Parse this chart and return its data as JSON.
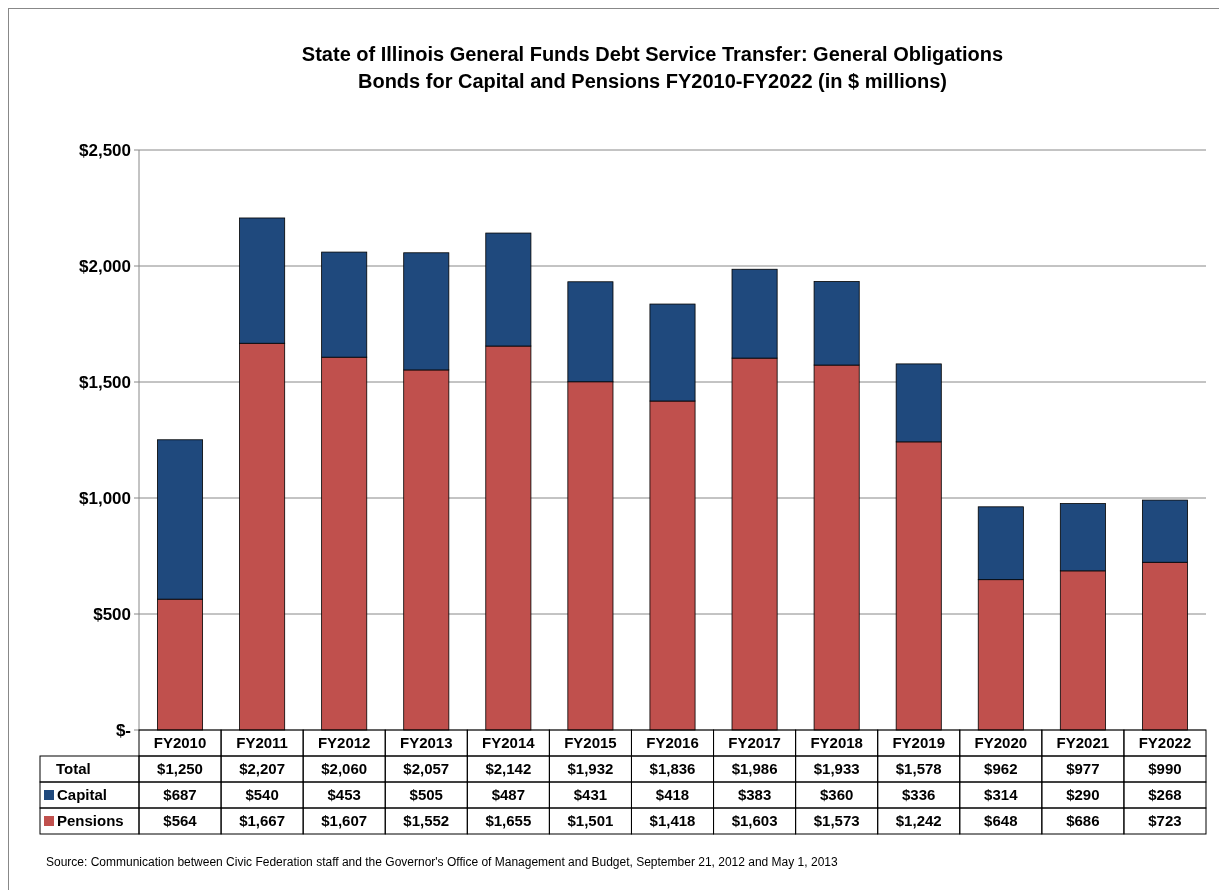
{
  "chart_data": {
    "type": "bar",
    "stacked": true,
    "title": "State of Illinois General Funds Debt Service Transfer:  General Obligations\nBonds for Capital and Pensions FY2010-FY2022 (in $ millions)",
    "categories": [
      "FY2010",
      "FY2011",
      "FY2012",
      "FY2013",
      "FY2014",
      "FY2015",
      "FY2016",
      "FY2017",
      "FY2018",
      "FY2019",
      "FY2020",
      "FY2021",
      "FY2022"
    ],
    "series": [
      {
        "name": "Pensions",
        "color": "#c0504d",
        "values": [
          564,
          1667,
          1607,
          1552,
          1655,
          1501,
          1418,
          1603,
          1573,
          1242,
          648,
          686,
          723
        ],
        "value_labels": [
          "$564",
          "$1,667",
          "$1,607",
          "$1,552",
          "$1,655",
          "$1,501",
          "$1,418",
          "$1,603",
          "$1,573",
          "$1,242",
          "$648",
          "$686",
          "$723"
        ]
      },
      {
        "name": "Capital",
        "color": "#1f497d",
        "values": [
          687,
          540,
          453,
          505,
          487,
          431,
          418,
          383,
          360,
          336,
          314,
          290,
          268
        ],
        "value_labels": [
          "$687",
          "$540",
          "$453",
          "$505",
          "$487",
          "$431",
          "$418",
          "$383",
          "$360",
          "$336",
          "$314",
          "$290",
          "$268"
        ]
      }
    ],
    "totals": [
      "$1,250",
      "$2,207",
      "$2,060",
      "$2,057",
      "$2,142",
      "$1,932",
      "$1,836",
      "$1,986",
      "$1,933",
      "$1,578",
      "$962",
      "$977",
      "$990"
    ],
    "ylim": [
      0,
      2500
    ],
    "yticks": [
      {
        "value": 0,
        "label": "$-"
      },
      {
        "value": 500,
        "label": "$500"
      },
      {
        "value": 1000,
        "label": "$1,000"
      },
      {
        "value": 1500,
        "label": "$1,500"
      },
      {
        "value": 2000,
        "label": "$2,000"
      },
      {
        "value": 2500,
        "label": "$2,500"
      }
    ],
    "grid": "y",
    "legend": "bottom",
    "data_labels": true,
    "annotations": [
      "Total",
      "Source: Communication between Civic Federation staff and the Governor's Office of Management and Budget, September  21, 2012 and  May 1, 2013"
    ]
  }
}
